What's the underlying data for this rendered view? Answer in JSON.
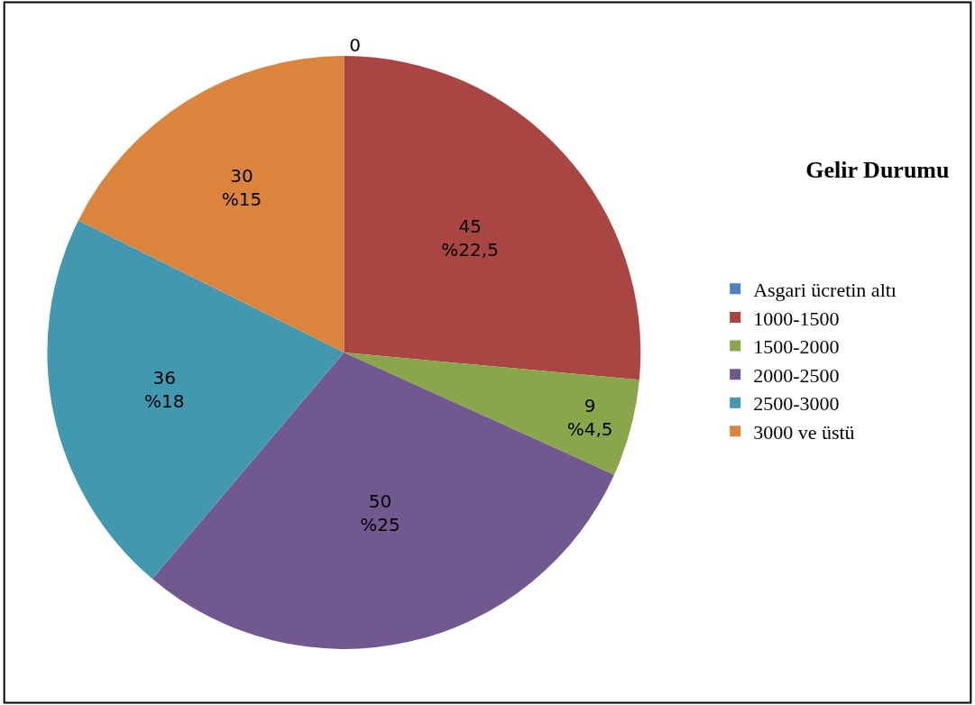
{
  "chart_data": {
    "type": "pie",
    "title": "Gelir Durumu",
    "categories": [
      "Asgari ücretin altı",
      "1000-1500",
      "1500-2000",
      "2000-2500",
      "2500-3000",
      "3000 ve üstü"
    ],
    "values": [
      0,
      45,
      9,
      50,
      36,
      30
    ],
    "value_labels": [
      "0",
      "45\n%22,5",
      "9\n%4,5",
      "50\n%25",
      "36\n%18",
      "30\n%15"
    ],
    "colors": [
      "#4f81bd",
      "#a94643",
      "#8aa64a",
      "#71588f",
      "#4198af",
      "#db843d"
    ],
    "legend": "right"
  }
}
